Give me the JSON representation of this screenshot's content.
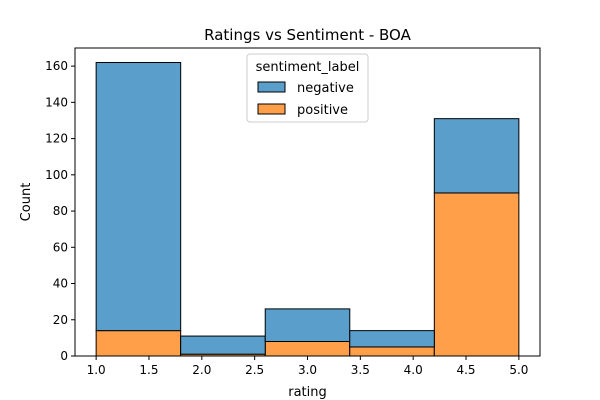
{
  "chart_data": {
    "type": "bar",
    "stacked": true,
    "title": "Ratings vs Sentiment - BOA",
    "xlabel": "rating",
    "ylabel": "Count",
    "bins": [
      [
        1.0,
        1.8
      ],
      [
        1.8,
        2.6
      ],
      [
        2.6,
        3.4
      ],
      [
        3.4,
        4.2
      ],
      [
        4.2,
        5.0
      ]
    ],
    "series": [
      {
        "name": "positive",
        "values": [
          14,
          1,
          8,
          5,
          90
        ],
        "color": "#ff9f4a"
      },
      {
        "name": "negative",
        "values": [
          148,
          10,
          18,
          9,
          41
        ],
        "color": "#5a9ecb"
      }
    ],
    "xlim": [
      0.8,
      5.2
    ],
    "ylim": [
      0,
      170
    ],
    "xticks": [
      "1.0",
      "1.5",
      "2.0",
      "2.5",
      "3.0",
      "3.5",
      "4.0",
      "4.5",
      "5.0"
    ],
    "yticks": [
      "0",
      "20",
      "40",
      "60",
      "80",
      "100",
      "120",
      "140",
      "160"
    ],
    "legend": {
      "title": "sentiment_label",
      "entries": [
        "negative",
        "positive"
      ],
      "placement": "upper-center"
    },
    "grid": false
  }
}
